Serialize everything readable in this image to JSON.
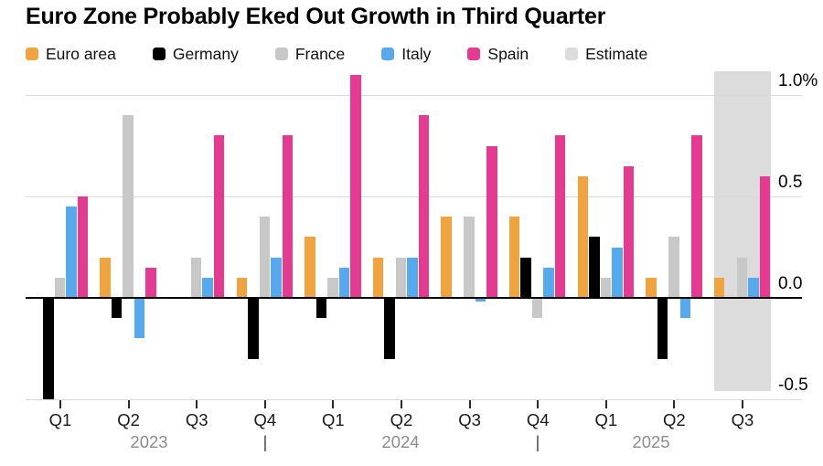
{
  "title": "Euro Zone Probably Eked Out Growth in Third Quarter",
  "legend": [
    {
      "label": "Euro area",
      "color": "#F0A33E"
    },
    {
      "label": "Germany",
      "color": "#000000"
    },
    {
      "label": "France",
      "color": "#C8C8C8"
    },
    {
      "label": "Italy",
      "color": "#57A9EE"
    },
    {
      "label": "Spain",
      "color": "#E53A92"
    },
    {
      "label": "Estimate",
      "color": "#DCDCDC"
    }
  ],
  "chart_data": {
    "type": "bar",
    "unit": "%",
    "categories": [
      "Q1",
      "Q2",
      "Q3",
      "Q4",
      "Q1",
      "Q2",
      "Q3",
      "Q4",
      "Q1",
      "Q2",
      "Q3"
    ],
    "category_years": [
      "2023",
      "2023",
      "2023",
      "2023",
      "2024",
      "2024",
      "2024",
      "2024",
      "2025",
      "2025",
      "2025"
    ],
    "series": [
      {
        "name": "Euro area",
        "color": "#F0A33E",
        "values": [
          0.0,
          0.2,
          0.0,
          0.1,
          0.3,
          0.2,
          0.4,
          0.4,
          0.6,
          0.1,
          0.1
        ]
      },
      {
        "name": "Germany",
        "color": "#000000",
        "values": [
          -0.5,
          -0.1,
          0.0,
          -0.3,
          -0.1,
          -0.3,
          0.0,
          0.2,
          0.3,
          -0.3,
          0.0
        ]
      },
      {
        "name": "France",
        "color": "#C8C8C8",
        "values": [
          0.1,
          0.9,
          0.2,
          0.4,
          0.1,
          0.2,
          0.4,
          -0.1,
          0.1,
          0.3,
          0.2
        ]
      },
      {
        "name": "Italy",
        "color": "#57A9EE",
        "values": [
          0.45,
          -0.2,
          0.1,
          0.2,
          0.15,
          0.2,
          -0.02,
          0.15,
          0.25,
          -0.1,
          0.1
        ]
      },
      {
        "name": "Spain",
        "color": "#E53A92",
        "values": [
          0.5,
          0.15,
          0.8,
          0.8,
          1.1,
          0.9,
          0.75,
          0.8,
          0.65,
          0.8,
          0.6
        ]
      }
    ],
    "estimate_quarter_index": 10,
    "estimate_band_color": "#DCDCDC",
    "y_ticks": [
      {
        "value": 1.0,
        "label": "1.0%"
      },
      {
        "value": 0.5,
        "label": "0.5"
      },
      {
        "value": 0.0,
        "label": "0.0"
      },
      {
        "value": -0.5,
        "label": "-0.5"
      }
    ],
    "ylim": [
      -0.55,
      1.12
    ],
    "grid": true,
    "legend_position": "top",
    "x_axis": {
      "years": [
        "2023",
        "2024",
        "2025"
      ],
      "separator": "|"
    }
  }
}
